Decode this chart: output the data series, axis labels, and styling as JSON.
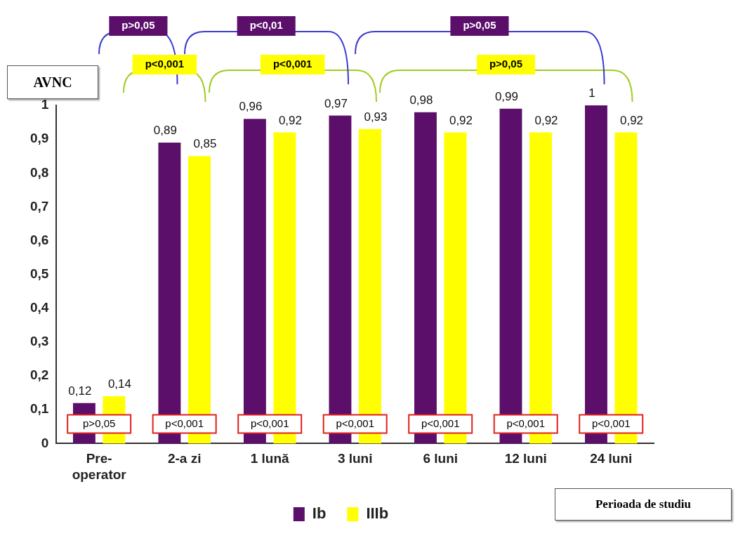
{
  "chart_data": {
    "type": "bar",
    "ylabel": "AVNC",
    "xlabel": "Perioada de studiu",
    "categories": [
      "Pre-\noperator",
      "2-a zi",
      "1 lună",
      "3 luni",
      "6 luni",
      "12 luni",
      "24 luni"
    ],
    "series": [
      {
        "name": "Ib",
        "color": "#5b0f6b",
        "values": [
          0.12,
          0.89,
          0.96,
          0.97,
          0.98,
          0.99,
          1
        ],
        "value_labels": [
          "0,12",
          "0,89",
          "0,96",
          "0,97",
          "0,98",
          "0,99",
          "1"
        ]
      },
      {
        "name": "IIIb",
        "color": "#ffff00",
        "values": [
          0.14,
          0.85,
          0.92,
          0.93,
          0.92,
          0.92,
          0.92
        ],
        "value_labels": [
          "0,14",
          "0,85",
          "0,92",
          "0,93",
          "0,92",
          "0,92",
          "0,92"
        ]
      }
    ],
    "ylim": [
      0,
      1
    ],
    "yticks": [
      0,
      {
        "value": 0.1,
        "label": "0,1"
      },
      {
        "value": 0.2,
        "label": "0,2"
      },
      {
        "value": 0.3,
        "label": "0,3"
      },
      {
        "value": 0.4,
        "label": "0,4"
      },
      {
        "value": 0.5,
        "label": "0,5"
      },
      {
        "value": 0.6,
        "label": "0,6"
      },
      {
        "value": 0.7,
        "label": "0,7"
      },
      {
        "value": 0.8,
        "label": "0,8"
      },
      {
        "value": 0.9,
        "label": "0,9"
      },
      1
    ],
    "grid": false,
    "legend": "bottom",
    "annotations": [
      "p>0,05",
      "p<0,01",
      "p>0,05",
      "p<0,001",
      "p<0,001",
      "p>0,05",
      "p>0,05",
      "p<0,001",
      "p<0,001",
      "p<0,001",
      "p<0,001",
      "p<0,001",
      "p<0,001"
    ]
  }
}
